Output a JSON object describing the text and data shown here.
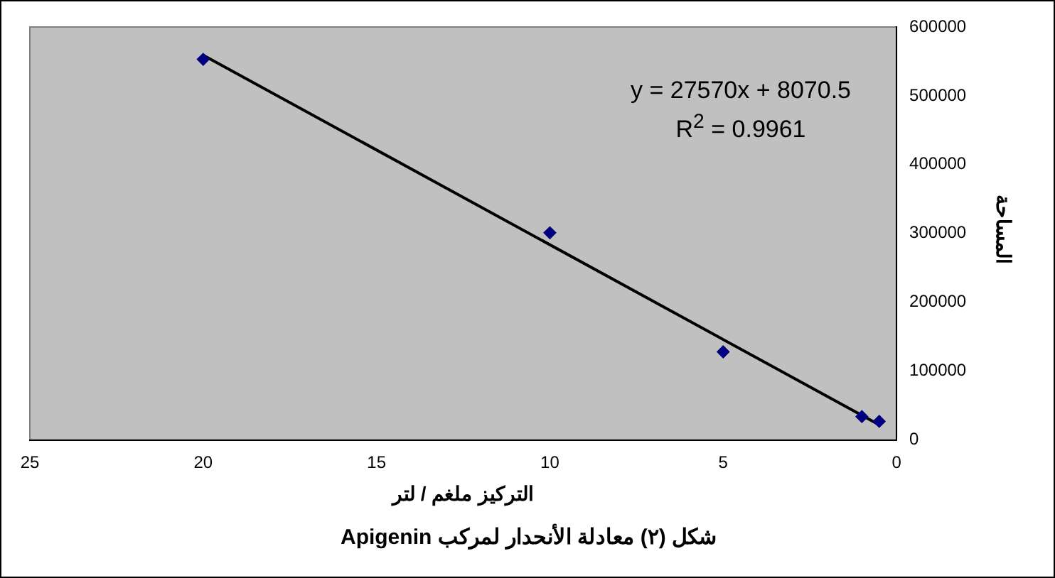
{
  "chart_data": {
    "type": "scatter",
    "title": "شكل (٢) معادلة الأنحدار لمركب Apigenin",
    "xlabel": "التركيز ملغم / لتر",
    "ylabel": "المساحة",
    "annotations": [
      "y = 27570x + 8070.5",
      "R$^{2}$ = 0.9961"
    ],
    "x": [
      20,
      10,
      5,
      1,
      0.5
    ],
    "series": [
      {
        "type": "scatter",
        "color": "#000080",
        "values": [
          553000,
          301000,
          128000,
          34000,
          27000
        ],
        "marker": "diamond"
      },
      {
        "type": "line",
        "color": "#000000",
        "x": [
          20,
          0.5
        ],
        "values": [
          559000,
          22000
        ],
        "marker": "none",
        "line_style": "solid"
      }
    ],
    "xlim": [
      25,
      0
    ],
    "xticks": [
      25,
      20,
      15,
      10,
      5,
      0
    ],
    "ylim": [
      0,
      600000
    ],
    "yticks": [
      0,
      100000,
      200000,
      300000,
      400000,
      500000,
      600000
    ],
    "grid": false,
    "legend": false
  }
}
